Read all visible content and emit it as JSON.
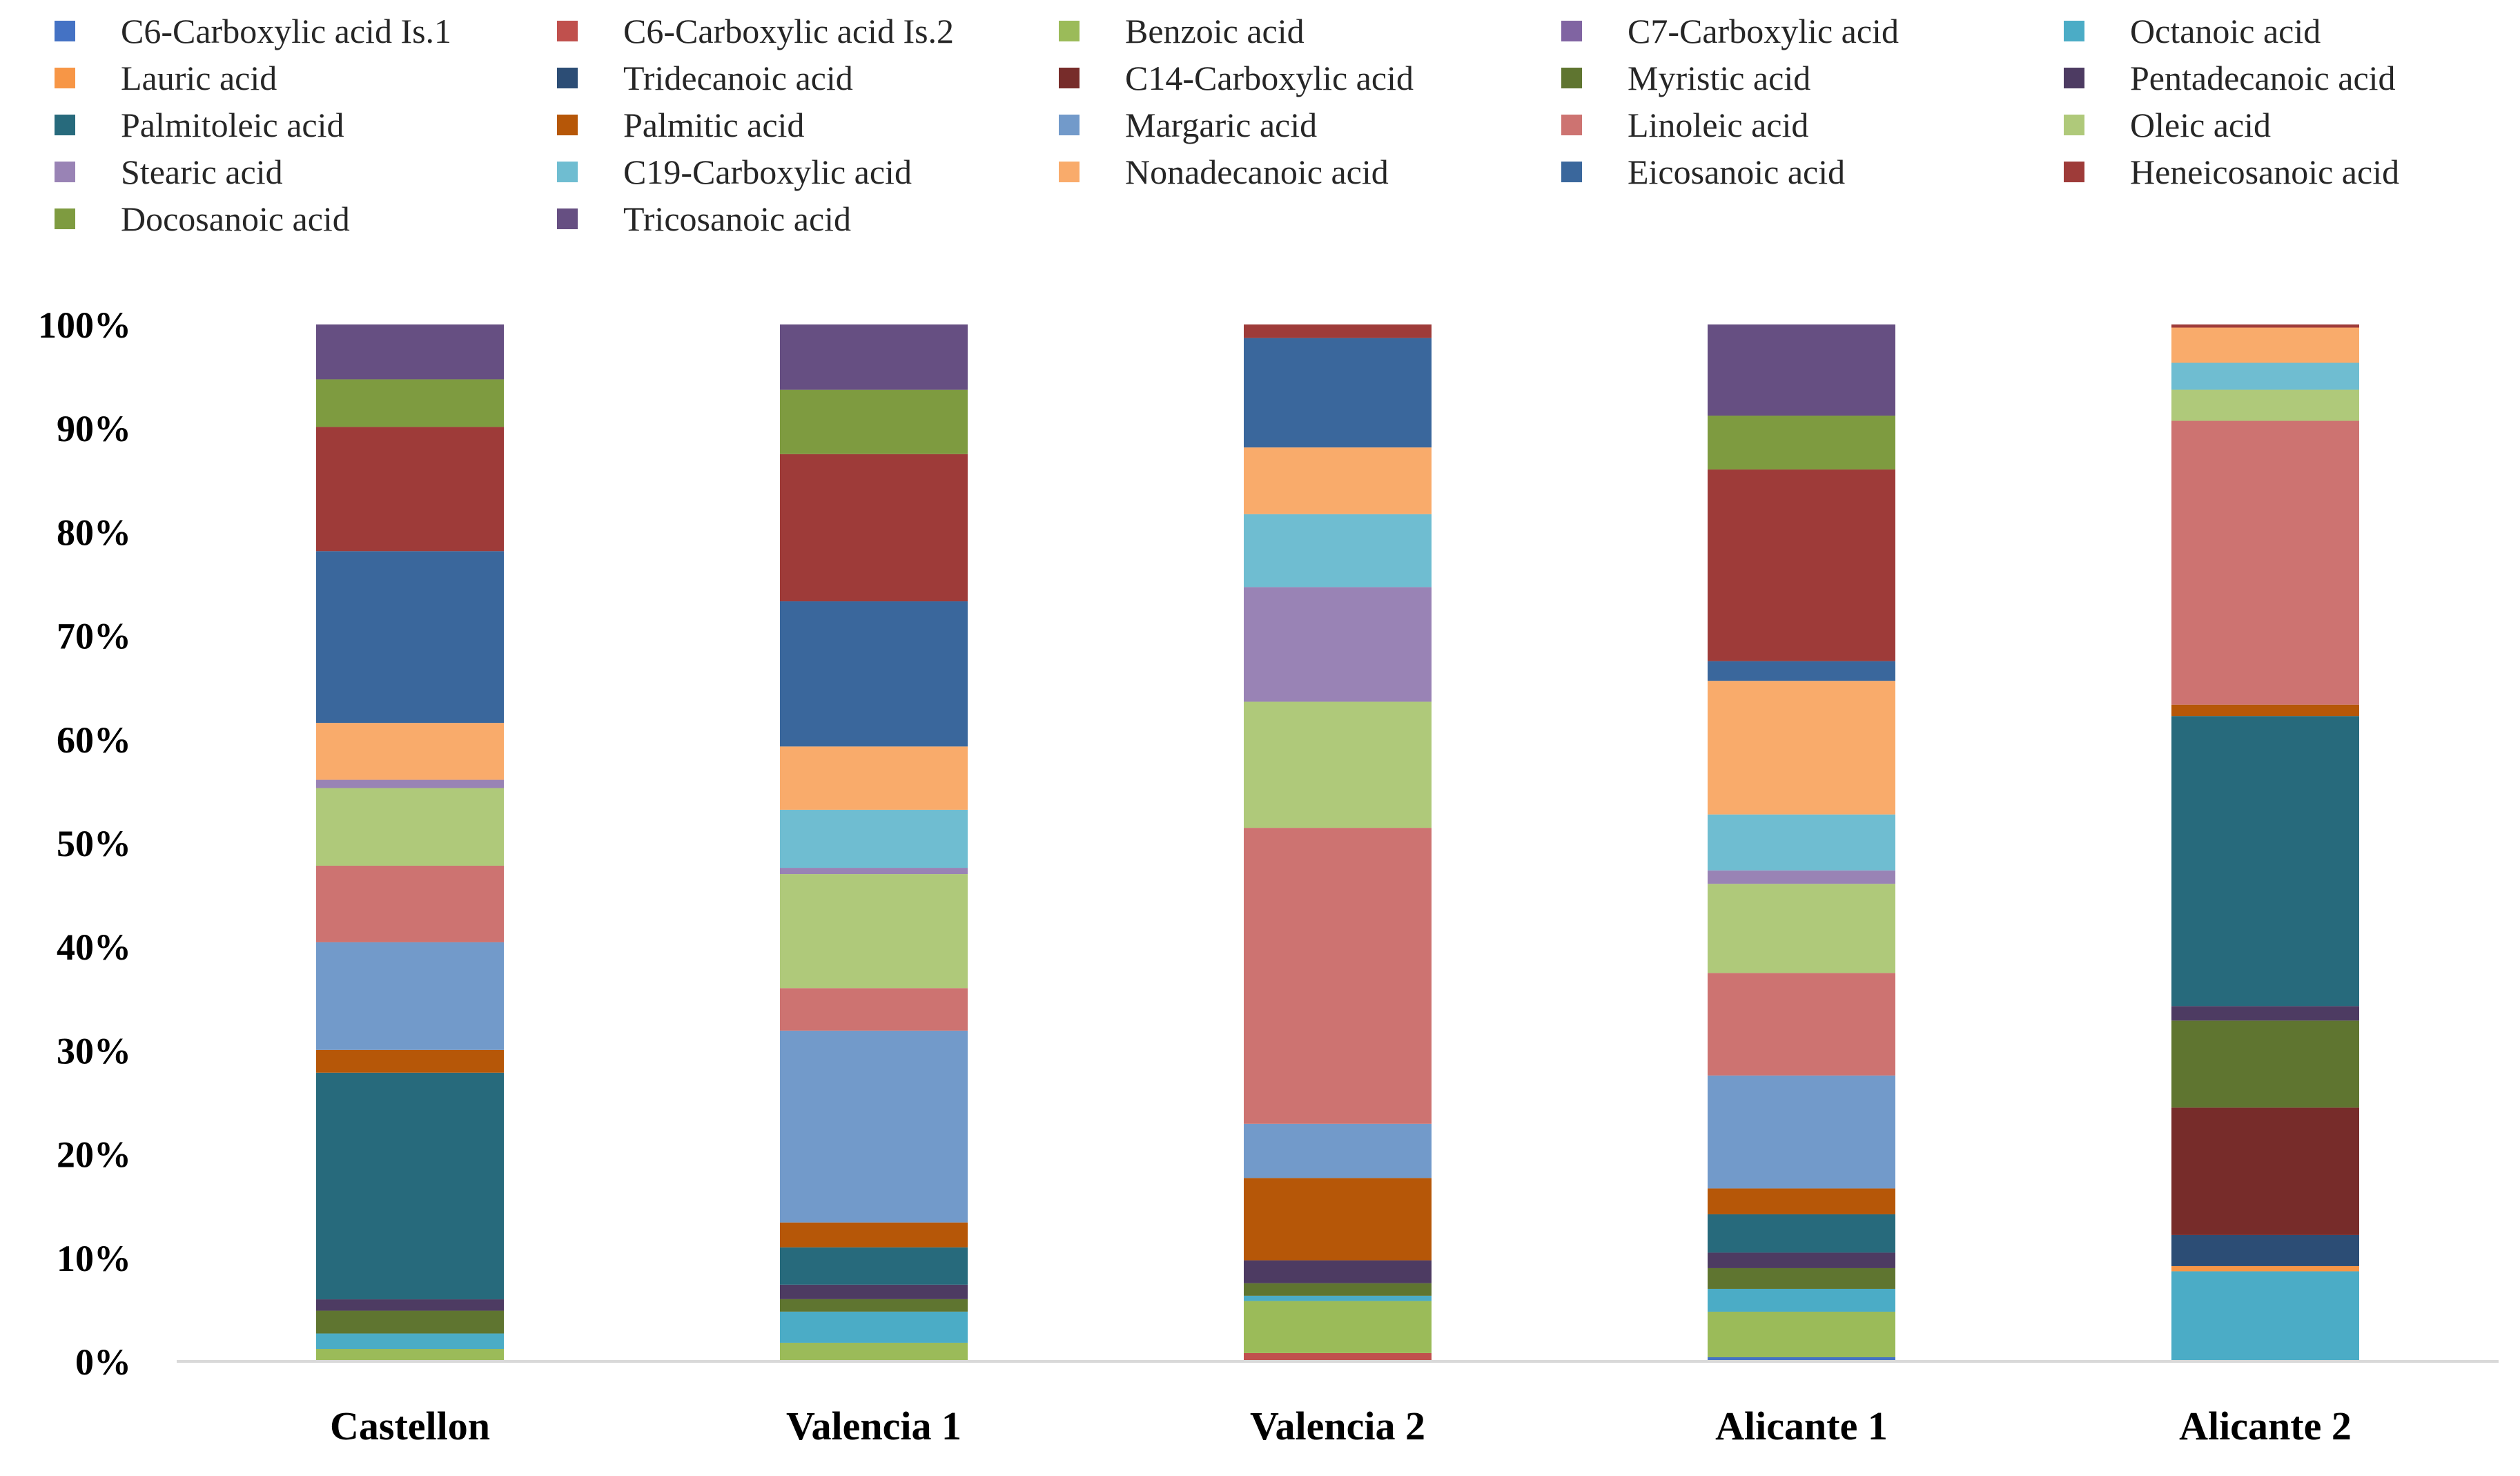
{
  "chart_data": {
    "type": "bar",
    "stacked": true,
    "normalized": true,
    "title": "",
    "xlabel": "",
    "ylabel": "",
    "ylim": [
      0,
      100
    ],
    "y_ticks": [
      "0%",
      "10%",
      "20%",
      "30%",
      "40%",
      "50%",
      "60%",
      "70%",
      "80%",
      "90%",
      "100%"
    ],
    "grid": false,
    "legend_position": "top",
    "categories": [
      "Castellon",
      "Valencia 1",
      "Valencia 2",
      "Alicante 1",
      "Alicante 2"
    ],
    "series": [
      {
        "name": "C6-Carboxylic acid Is.1",
        "color": "#4472C4",
        "values": [
          0,
          0,
          0,
          0.4,
          0
        ]
      },
      {
        "name": "C6-Carboxylic acid Is.2",
        "color": "#C0504D",
        "values": [
          0,
          0,
          0.8,
          0,
          0
        ]
      },
      {
        "name": "Benzoic acid",
        "color": "#9BBB59",
        "values": [
          1.2,
          1.8,
          5.0,
          4.4,
          0
        ]
      },
      {
        "name": "C7-Carboxylic acid",
        "color": "#8064A2",
        "values": [
          0,
          0,
          0,
          0,
          0
        ]
      },
      {
        "name": "Octanoic acid",
        "color": "#4BACC6",
        "values": [
          1.5,
          3.0,
          0.5,
          2.2,
          8.7
        ]
      },
      {
        "name": "Lauric acid",
        "color": "#F79646",
        "values": [
          0,
          0,
          0,
          0,
          0.5
        ]
      },
      {
        "name": "Tridecanoic acid",
        "color": "#2C4D75",
        "values": [
          0,
          0,
          0,
          0,
          3.0
        ]
      },
      {
        "name": "C14-Carboxylic acid",
        "color": "#772C2A",
        "values": [
          0,
          0,
          0,
          0,
          12.3
        ]
      },
      {
        "name": "Myristic acid",
        "color": "#5F7530",
        "values": [
          2.2,
          1.2,
          1.2,
          2.0,
          8.4
        ]
      },
      {
        "name": "Pentadecanoic acid",
        "color": "#4D3B62",
        "values": [
          1.1,
          1.4,
          2.2,
          1.5,
          1.4
        ]
      },
      {
        "name": "Palmitoleic acid",
        "color": "#276A7C",
        "values": [
          21.9,
          3.6,
          0,
          3.7,
          28.0
        ]
      },
      {
        "name": "Palmitic acid",
        "color": "#B65708",
        "values": [
          2.2,
          2.4,
          7.9,
          2.5,
          1.1
        ]
      },
      {
        "name": "Margaric acid",
        "color": "#729ACA",
        "values": [
          10.4,
          18.5,
          5.2,
          10.9,
          0
        ]
      },
      {
        "name": "Linoleic acid",
        "color": "#CD7371",
        "values": [
          7.4,
          4.1,
          28.4,
          9.9,
          27.4
        ]
      },
      {
        "name": "Oleic acid",
        "color": "#AFC97A",
        "values": [
          7.5,
          11.0,
          12.1,
          8.6,
          3.0
        ]
      },
      {
        "name": "Stearic acid",
        "color": "#9983B5",
        "values": [
          0.8,
          0.6,
          11.0,
          1.3,
          0
        ]
      },
      {
        "name": "C19-Carboxylic acid",
        "color": "#6FBDD1",
        "values": [
          0,
          5.6,
          7.0,
          5.4,
          2.6
        ]
      },
      {
        "name": "Nonadecanoic acid",
        "color": "#F9AB6B",
        "values": [
          5.5,
          6.1,
          6.4,
          12.9,
          3.4
        ]
      },
      {
        "name": "Eicosanoic acid",
        "color": "#3A679C",
        "values": [
          16.6,
          14.0,
          10.5,
          1.9,
          0
        ]
      },
      {
        "name": "Heneicosanoic acid",
        "color": "#9E3B39",
        "values": [
          12.0,
          14.2,
          1.3,
          18.5,
          0.3
        ]
      },
      {
        "name": "Docosanoic acid",
        "color": "#7E9B40",
        "values": [
          4.6,
          6.2,
          0,
          5.2,
          0
        ]
      },
      {
        "name": "Tricosanoic acid",
        "color": "#664F82",
        "values": [
          5.3,
          6.3,
          0,
          8.8,
          0
        ]
      }
    ]
  }
}
